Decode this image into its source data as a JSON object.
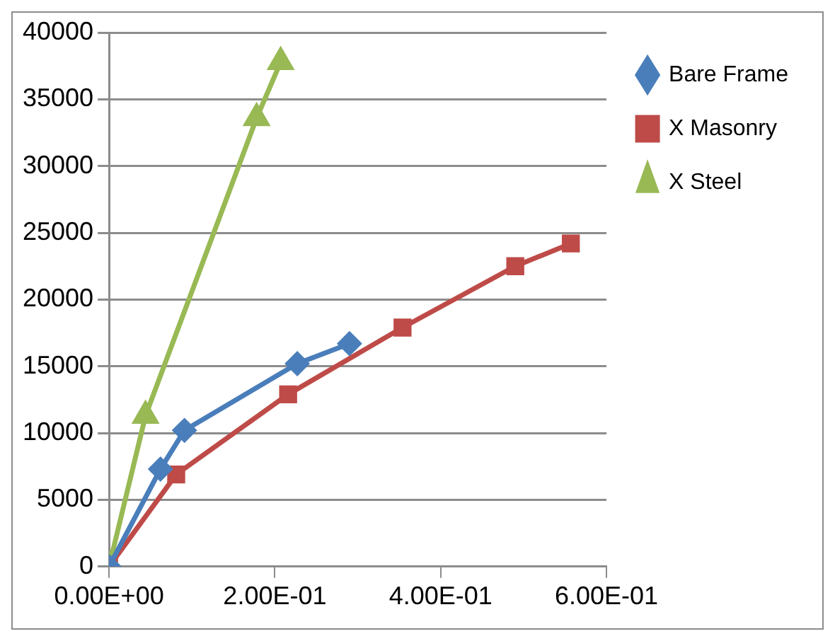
{
  "chart_data": {
    "type": "line",
    "xlim": [
      0,
      0.6
    ],
    "xticks": [
      {
        "value": 0,
        "label": "0.00E+00"
      },
      {
        "value": 0.2,
        "label": "2.00E-01"
      },
      {
        "value": 0.4,
        "label": "4.00E-01"
      },
      {
        "value": 0.6,
        "label": "6.00E-01"
      }
    ],
    "ylim": [
      0,
      40000
    ],
    "yticks": [
      0,
      5000,
      10000,
      15000,
      20000,
      25000,
      30000,
      35000,
      40000
    ],
    "grid": "y",
    "legend": "right",
    "series": [
      {
        "name": "Bare Frame",
        "color": "#4a7ebb",
        "marker": "diamond",
        "x": [
          0,
          0.062,
          0.091,
          0.227,
          0.29
        ],
        "values": [
          0,
          7300,
          10200,
          15200,
          16700
        ]
      },
      {
        "name": "X Masonry",
        "color": "#be4b48",
        "marker": "square",
        "x": [
          0,
          0.081,
          0.216,
          0.354,
          0.49,
          0.557
        ],
        "values": [
          0,
          6900,
          12900,
          17900,
          22500,
          24200
        ]
      },
      {
        "name": "X Steel",
        "color": "#98b954",
        "marker": "triangle",
        "x": [
          0,
          0.044,
          0.178,
          0.207
        ],
        "values": [
          0,
          11300,
          33600,
          37800
        ]
      }
    ]
  }
}
